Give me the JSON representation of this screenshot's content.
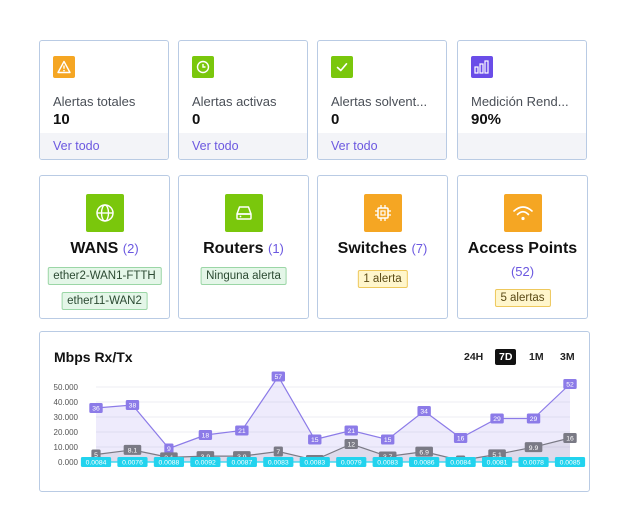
{
  "stats": [
    {
      "label": "Alertas totales",
      "value": "10",
      "link": "Ver todo",
      "color": "#f5a623",
      "icon": "warning-icon"
    },
    {
      "label": "Alertas activas",
      "value": "0",
      "link": "Ver todo",
      "color": "#7ac70c",
      "icon": "clock-icon"
    },
    {
      "label": "Alertas solvent...",
      "value": "0",
      "link": "Ver todo",
      "color": "#7ac70c",
      "icon": "check-icon"
    },
    {
      "label": "Medición Rend...",
      "value": "90%",
      "link": "",
      "color": "#6a4de8",
      "icon": "bar-chart-icon"
    }
  ],
  "devices": {
    "wans": {
      "title": "WANS",
      "count": "(2)",
      "tags": [
        "ether2-WAN1-FTTH",
        "ether11-WAN2"
      ],
      "icon": "globe-icon",
      "color": "#7ac70c"
    },
    "routers": {
      "title": "Routers",
      "count": "(1)",
      "tags": [
        "Ninguna alerta"
      ],
      "icon": "router-icon",
      "color": "#7ac70c"
    },
    "switches": {
      "title": "Switches",
      "count": "(7)",
      "tags": [
        "1 alerta"
      ],
      "icon": "chip-icon",
      "color": "#f5a623"
    },
    "access_points": {
      "title": "Access Points",
      "count": "(52)",
      "tags": [
        "5 alertas"
      ],
      "icon": "wifi-icon",
      "color": "#f5a623"
    }
  },
  "chart": {
    "title": "Mbps Rx/Tx",
    "ranges": [
      "24H",
      "7D",
      "1M",
      "3M"
    ],
    "active_range": "7D"
  },
  "chart_data": {
    "type": "area",
    "title": "Mbps Rx/Tx",
    "yticks": [
      "0.000",
      "10.000",
      "20.000",
      "30.000",
      "40.000",
      "50.000"
    ],
    "ylim": [
      0,
      58
    ],
    "series": [
      {
        "values": [
          36,
          38,
          9,
          18,
          21,
          57,
          15,
          21,
          15,
          34,
          16,
          29,
          29,
          52
        ],
        "color": "#8c7be8"
      },
      {
        "values": [
          5,
          8.1,
          3.1,
          3.9,
          3.9,
          7,
          1.3,
          12,
          3.7,
          6.9,
          1,
          5.1,
          9.9,
          16
        ],
        "color": "#7a7a85"
      },
      {
        "values": [
          0.0084,
          0.0076,
          0.0088,
          0.0092,
          0.0087,
          0.0083,
          0.0083,
          0.0079,
          0.0083,
          0.0086,
          0.0084,
          0.0081,
          0.0078,
          0.0085
        ],
        "color": "#22d3ee"
      }
    ],
    "point_labels": [
      [
        "36",
        "38",
        "9",
        "18",
        "21",
        "57",
        "15",
        "21",
        "15",
        "34",
        "16",
        "29",
        "29",
        "52"
      ],
      [
        "5",
        "8.1",
        "3.1",
        "3.9",
        "3.9",
        "7",
        "1.3",
        "12",
        "3.7",
        "6.9",
        "1",
        "5.1",
        "9.9",
        "16"
      ],
      [
        "0.0084",
        "0.0076",
        "0.0088",
        "0.0092",
        "0.0087",
        "0.0083",
        "0.0083",
        "0.0079",
        "0.0083",
        "0.0086",
        "0.0084",
        "0.0081",
        "0.0078",
        "0.0085"
      ]
    ]
  }
}
